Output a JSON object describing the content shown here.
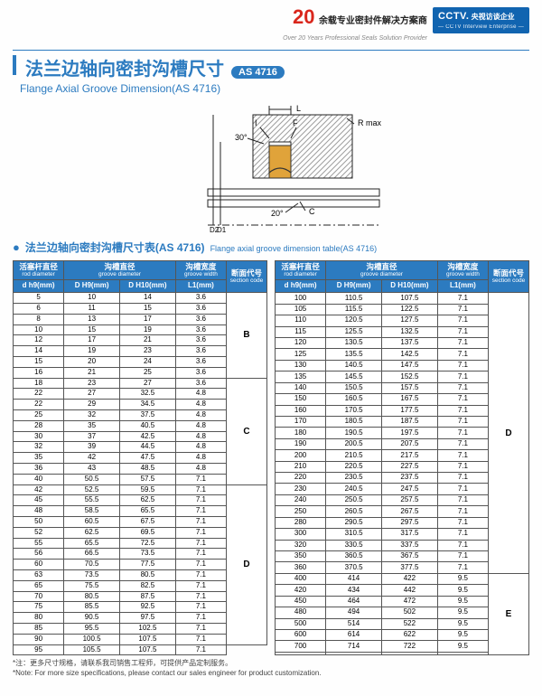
{
  "topbar": {
    "num20": "20",
    "cn": "余载专业密封件解决方案商",
    "en": "Over 20 Years Professional Seals Solution Provider",
    "cctv": "CCTV.",
    "cctv_cn": "央视访谈企业",
    "cctv_en": "— CCTV Interview Enterprise —"
  },
  "title": {
    "cn": "法兰边轴向密封沟槽尺寸",
    "badge": "AS 4716",
    "en": "Flange Axial Groove Dimension(AS 4716)"
  },
  "diagram": {
    "labels": {
      "I": "I",
      "F": "F",
      "L": "L",
      "Rmax": "R max",
      "D1": "D1",
      "D2": "D2",
      "C": "C",
      "ang30": "30°",
      "ang20": "20°"
    },
    "colors": {
      "hatch": "#b7b7b7",
      "seal_fill": "#e0a33a",
      "seal_stroke": "#333333",
      "line": "#222222"
    }
  },
  "subhead": {
    "cn": "法兰边轴向密封沟槽尺寸表(AS 4716)",
    "en": "Flange axial groove dimension table(AS 4716)"
  },
  "headers": {
    "col1_cn": "活塞杆直径",
    "col1_en": "rod diameter",
    "col2_cn": "沟槽直径",
    "col2_en": "groove diameter",
    "col3_cn": "沟槽宽度",
    "col3_en": "groove width",
    "col4_cn": "断面代号",
    "col4_en": "section code",
    "u1": "d h9(mm)",
    "u2": "D H9(mm)",
    "u3": "D H10(mm)",
    "u4": "L1(mm)"
  },
  "left_rows": [
    {
      "d": "5",
      "D1": "10",
      "D2": "14",
      "L": "3.6",
      "sec": "B",
      "span": 8
    },
    {
      "d": "6",
      "D1": "11",
      "D2": "15",
      "L": "3.6"
    },
    {
      "d": "8",
      "D1": "13",
      "D2": "17",
      "L": "3.6"
    },
    {
      "d": "10",
      "D1": "15",
      "D2": "19",
      "L": "3.6"
    },
    {
      "d": "12",
      "D1": "17",
      "D2": "21",
      "L": "3.6"
    },
    {
      "d": "14",
      "D1": "19",
      "D2": "23",
      "L": "3.6"
    },
    {
      "d": "15",
      "D1": "20",
      "D2": "24",
      "L": "3.6"
    },
    {
      "d": "16",
      "D1": "21",
      "D2": "25",
      "L": "3.6"
    },
    {
      "d": "18",
      "D1": "23",
      "D2": "27",
      "L": "3.6",
      "sec": "C",
      "span": 10
    },
    {
      "d": "22",
      "D1": "27",
      "D2": "32.5",
      "L": "4.8"
    },
    {
      "d": "22",
      "D1": "29",
      "D2": "34.5",
      "L": "4.8"
    },
    {
      "d": "25",
      "D1": "32",
      "D2": "37.5",
      "L": "4.8"
    },
    {
      "d": "28",
      "D1": "35",
      "D2": "40.5",
      "L": "4.8"
    },
    {
      "d": "30",
      "D1": "37",
      "D2": "42.5",
      "L": "4.8"
    },
    {
      "d": "32",
      "D1": "39",
      "D2": "44.5",
      "L": "4.8"
    },
    {
      "d": "35",
      "D1": "42",
      "D2": "47.5",
      "L": "4.8"
    },
    {
      "d": "36",
      "D1": "43",
      "D2": "48.5",
      "L": "4.8"
    },
    {
      "d": "40",
      "D1": "50.5",
      "D2": "57.5",
      "L": "7.1"
    },
    {
      "d": "42",
      "D1": "52.5",
      "D2": "59.5",
      "L": "7.1",
      "sec": "D",
      "span": 15
    },
    {
      "d": "45",
      "D1": "55.5",
      "D2": "62.5",
      "L": "7.1"
    },
    {
      "d": "48",
      "D1": "58.5",
      "D2": "65.5",
      "L": "7.1"
    },
    {
      "d": "50",
      "D1": "60.5",
      "D2": "67.5",
      "L": "7.1"
    },
    {
      "d": "52",
      "D1": "62.5",
      "D2": "69.5",
      "L": "7.1"
    },
    {
      "d": "55",
      "D1": "65.5",
      "D2": "72.5",
      "L": "7.1"
    },
    {
      "d": "56",
      "D1": "66.5",
      "D2": "73.5",
      "L": "7.1"
    },
    {
      "d": "60",
      "D1": "70.5",
      "D2": "77.5",
      "L": "7.1"
    },
    {
      "d": "63",
      "D1": "73.5",
      "D2": "80.5",
      "L": "7.1"
    },
    {
      "d": "65",
      "D1": "75.5",
      "D2": "82.5",
      "L": "7.1"
    },
    {
      "d": "70",
      "D1": "80.5",
      "D2": "87.5",
      "L": "7.1"
    },
    {
      "d": "75",
      "D1": "85.5",
      "D2": "92.5",
      "L": "7.1"
    },
    {
      "d": "80",
      "D1": "90.5",
      "D2": "97.5",
      "L": "7.1"
    },
    {
      "d": "85",
      "D1": "95.5",
      "D2": "102.5",
      "L": "7.1"
    },
    {
      "d": "90",
      "D1": "100.5",
      "D2": "107.5",
      "L": "7.1"
    },
    {
      "d": "95",
      "D1": "105.5",
      "D2": "107.5",
      "L": "7.1"
    }
  ],
  "right_rows": [
    {
      "d": "100",
      "D1": "110.5",
      "D2": "107.5",
      "L": "7.1",
      "sec": "D",
      "span": 25
    },
    {
      "d": "105",
      "D1": "115.5",
      "D2": "122.5",
      "L": "7.1"
    },
    {
      "d": "110",
      "D1": "120.5",
      "D2": "127.5",
      "L": "7.1"
    },
    {
      "d": "115",
      "D1": "125.5",
      "D2": "132.5",
      "L": "7.1"
    },
    {
      "d": "120",
      "D1": "130.5",
      "D2": "137.5",
      "L": "7.1"
    },
    {
      "d": "125",
      "D1": "135.5",
      "D2": "142.5",
      "L": "7.1"
    },
    {
      "d": "130",
      "D1": "140.5",
      "D2": "147.5",
      "L": "7.1"
    },
    {
      "d": "135",
      "D1": "145.5",
      "D2": "152.5",
      "L": "7.1"
    },
    {
      "d": "140",
      "D1": "150.5",
      "D2": "157.5",
      "L": "7.1"
    },
    {
      "d": "150",
      "D1": "160.5",
      "D2": "167.5",
      "L": "7.1"
    },
    {
      "d": "160",
      "D1": "170.5",
      "D2": "177.5",
      "L": "7.1"
    },
    {
      "d": "170",
      "D1": "180.5",
      "D2": "187.5",
      "L": "7.1"
    },
    {
      "d": "180",
      "D1": "190.5",
      "D2": "197.5",
      "L": "7.1"
    },
    {
      "d": "190",
      "D1": "200.5",
      "D2": "207.5",
      "L": "7.1"
    },
    {
      "d": "200",
      "D1": "210.5",
      "D2": "217.5",
      "L": "7.1"
    },
    {
      "d": "210",
      "D1": "220.5",
      "D2": "227.5",
      "L": "7.1"
    },
    {
      "d": "220",
      "D1": "230.5",
      "D2": "237.5",
      "L": "7.1"
    },
    {
      "d": "230",
      "D1": "240.5",
      "D2": "247.5",
      "L": "7.1"
    },
    {
      "d": "240",
      "D1": "250.5",
      "D2": "257.5",
      "L": "7.1"
    },
    {
      "d": "250",
      "D1": "260.5",
      "D2": "267.5",
      "L": "7.1"
    },
    {
      "d": "280",
      "D1": "290.5",
      "D2": "297.5",
      "L": "7.1"
    },
    {
      "d": "300",
      "D1": "310.5",
      "D2": "317.5",
      "L": "7.1"
    },
    {
      "d": "320",
      "D1": "330.5",
      "D2": "337.5",
      "L": "7.1"
    },
    {
      "d": "350",
      "D1": "360.5",
      "D2": "367.5",
      "L": "7.1"
    },
    {
      "d": "360",
      "D1": "370.5",
      "D2": "377.5",
      "L": "7.1"
    },
    {
      "d": "400",
      "D1": "414",
      "D2": "422",
      "L": "9.5",
      "sec": "E",
      "span": 8
    },
    {
      "d": "420",
      "D1": "434",
      "D2": "442",
      "L": "9.5"
    },
    {
      "d": "450",
      "D1": "464",
      "D2": "472",
      "L": "9.5"
    },
    {
      "d": "480",
      "D1": "494",
      "D2": "502",
      "L": "9.5"
    },
    {
      "d": "500",
      "D1": "514",
      "D2": "522",
      "L": "9.5"
    },
    {
      "d": "600",
      "D1": "614",
      "D2": "622",
      "L": "9.5"
    },
    {
      "d": "700",
      "D1": "714",
      "D2": "722",
      "L": "9.5"
    },
    {
      "d": "",
      "D1": "",
      "D2": "",
      "L": ""
    }
  ],
  "note": {
    "cn": "*注：更多尺寸规格，请联系我司销售工程师，可提供产品定制服务。",
    "en": "*Note: For more size specifications, please contact our sales engineer for product customization."
  }
}
